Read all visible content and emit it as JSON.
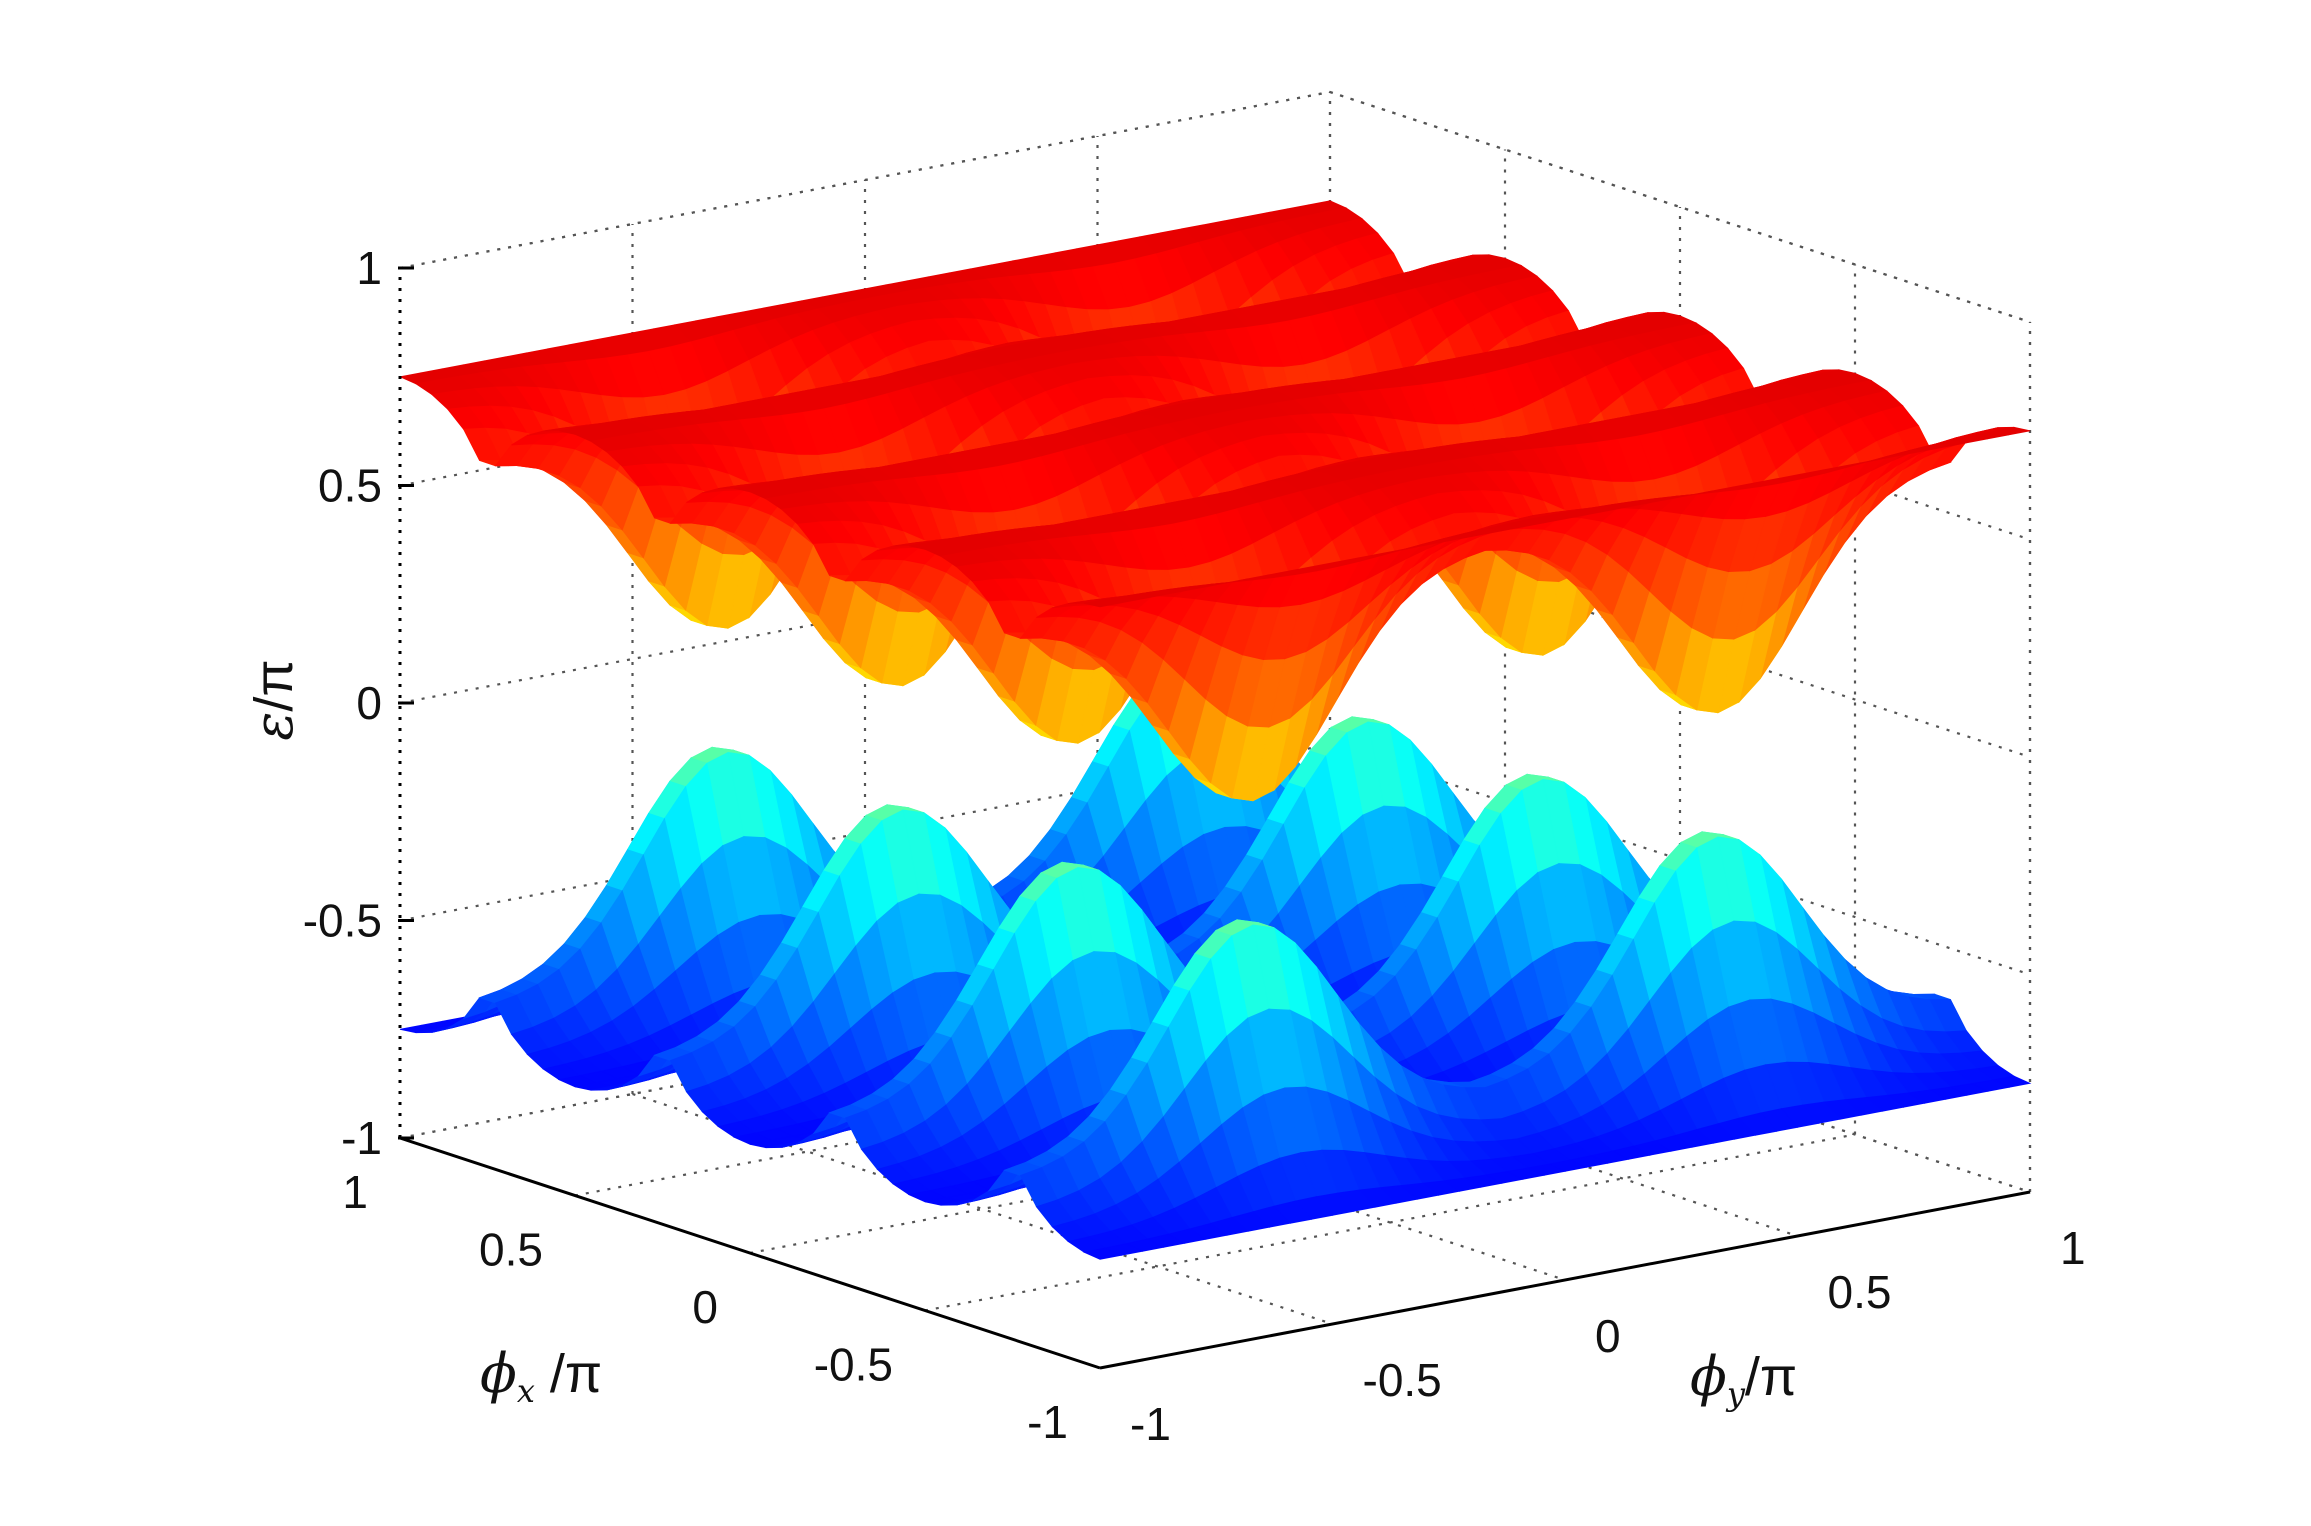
{
  "chart_data": {
    "type": "surface",
    "title": "",
    "xlabel": "ϕ_x / π",
    "ylabel": "ϕ_y / π",
    "zlabel": "ε / π",
    "xlim": [
      -1,
      1
    ],
    "ylim": [
      -1,
      1
    ],
    "zlim": [
      -1,
      1
    ],
    "x_ticks": [
      "-1",
      "-0.5",
      "0",
      "0.5",
      "1"
    ],
    "y_ticks": [
      "-1",
      "-0.5",
      "0",
      "0.5",
      "1"
    ],
    "z_ticks": [
      "-1",
      "-0.5",
      "0",
      "0.5",
      "1"
    ],
    "grid": true,
    "box": "dotted",
    "colormap": "jet",
    "series": [
      {
        "band": "upper",
        "plateau_value": 0.75,
        "edge_value": 0.5,
        "min_value": 0.0,
        "ridges_along_x": [
          -0.75,
          -0.25,
          0.25,
          0.75
        ]
      },
      {
        "band": "lower",
        "plateau_value": -0.75,
        "edge_value": -0.5,
        "max_value": 0.0,
        "ridges_along_x": [
          -0.75,
          -0.25,
          0.25,
          0.75
        ]
      }
    ],
    "colors": {
      "jet_stops": [
        "#00008f",
        "#0000ff",
        "#00ffff",
        "#ffff00",
        "#ff0000",
        "#800000"
      ]
    }
  },
  "labels": {
    "z_prefix": "ε",
    "z_suffix": "/π",
    "x_prefix": "ϕ",
    "x_sub": "x",
    "x_suffix": " /π",
    "y_prefix": "ϕ",
    "y_sub": "y",
    "y_suffix": "/π"
  }
}
